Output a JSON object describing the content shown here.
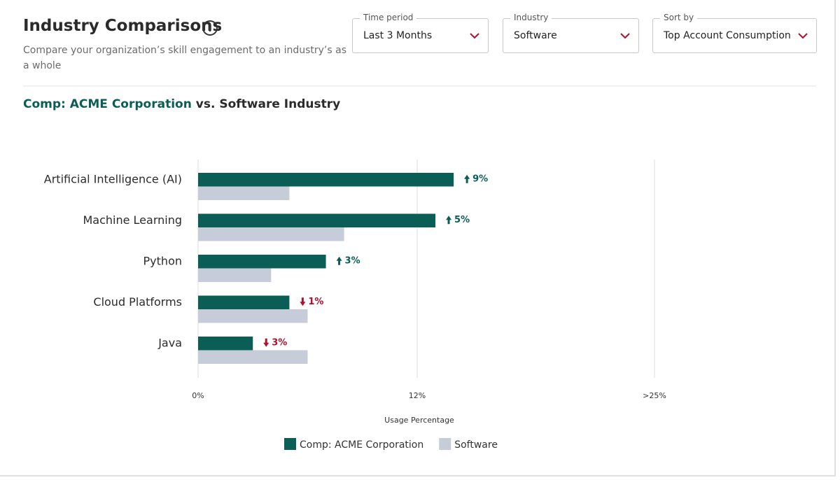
{
  "header": {
    "title": "Industry Comparisons",
    "subtitle": "Compare your organization’s skill engagement to an industry’s as a whole",
    "filters": [
      {
        "label": "Time period",
        "value": "Last 3 Months"
      },
      {
        "label": "Industry",
        "value": "Software"
      },
      {
        "label": "Sort by",
        "value": "Top Account Consumption"
      }
    ]
  },
  "chart_data": {
    "type": "bar",
    "orientation": "horizontal",
    "title": [
      "Comp: ACME Corporation",
      "vs. Software Industry"
    ],
    "categories": [
      "Artificial Intelligence (AI)",
      "Machine Learning",
      "Python",
      "Cloud Platforms",
      "Java"
    ],
    "series": [
      {
        "name": "Comp: ACME Corporation",
        "color": "#0b5e55",
        "values": [
          14,
          13,
          7,
          5,
          3
        ]
      },
      {
        "name": "Software",
        "color": "#c6cdd9",
        "values": [
          5,
          8,
          4,
          6,
          6
        ]
      }
    ],
    "differences": {
      "values": [
        9,
        5,
        3,
        -1,
        -3
      ],
      "value_labels": [
        "9%",
        "5%",
        "3%",
        "1%",
        "3%"
      ],
      "colors": {
        "up": "#0b5e55",
        "down": "#b0102a"
      }
    },
    "xlim": [
      0,
      25
    ],
    "xticks": [
      {
        "value": 0,
        "label": "0%"
      },
      {
        "value": 12,
        "label": "12%"
      },
      {
        "value": 25,
        "label": ">25%"
      }
    ],
    "xlabel": "Usage Percentage",
    "grid": true
  }
}
